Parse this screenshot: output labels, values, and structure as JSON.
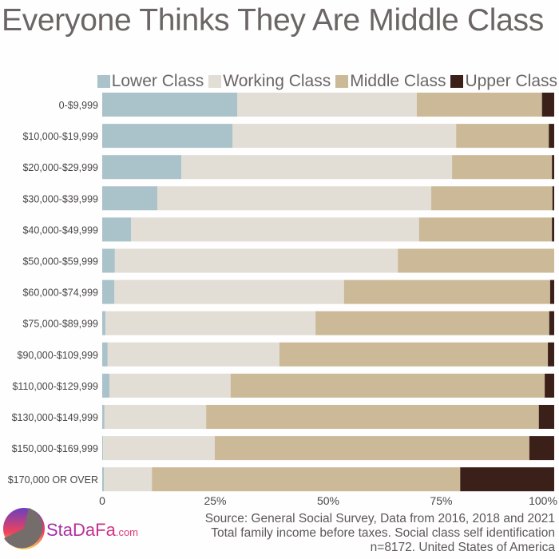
{
  "chart_data": {
    "type": "bar",
    "orientation": "horizontal",
    "stacked": true,
    "title": "Everyone Thinks They Are Middle Class",
    "categories": [
      "0-$9,999",
      "$10,000-$19,999",
      "$20,000-$29,999",
      "$30,000-$39,999",
      "$40,000-$49,999",
      "$50,000-$59,999",
      "$60,000-$74,999",
      "$75,000-$89,999",
      "$90,000-$109,999",
      "$110,000-$129,999",
      "$130,000-$149,999",
      "$150,000-$169,999",
      "$170,000 OR OVER"
    ],
    "series": [
      {
        "name": "Lower Class",
        "color": "#aac2c9",
        "values": [
          29.9,
          28.8,
          17.5,
          12.2,
          6.4,
          2.8,
          2.7,
          0.7,
          1.2,
          1.6,
          0.5,
          0.2,
          0.4
        ]
      },
      {
        "name": "Working Class",
        "color": "#e2ddd5",
        "values": [
          39.7,
          49.5,
          59.9,
          60.6,
          63.7,
          62.6,
          50.8,
          46.5,
          38.0,
          26.8,
          22.5,
          24.7,
          10.6
        ]
      },
      {
        "name": "Middle Class",
        "color": "#cbb998",
        "values": [
          27.7,
          20.5,
          22.1,
          26.8,
          29.4,
          34.6,
          45.6,
          51.7,
          59.4,
          69.5,
          73.6,
          69.6,
          68.2
        ]
      },
      {
        "name": "Upper Class",
        "color": "#3b2019",
        "values": [
          2.7,
          1.2,
          0.5,
          0.4,
          0.5,
          0.0,
          0.9,
          1.1,
          1.4,
          2.1,
          3.4,
          5.5,
          20.8
        ]
      }
    ],
    "xlim": [
      0,
      100
    ],
    "xticks": [
      0,
      25,
      50,
      75,
      100
    ],
    "xtick_labels": [
      "0",
      "25%",
      "50%",
      "75%",
      "100%"
    ],
    "legend_position": "top-right",
    "grid": false
  },
  "source": {
    "line1": "Source: General Social Survey, Data from 2016, 2018 and 2021",
    "line2": "Total family income before taxes. Social class self identification",
    "line3": "n=8172. United States of America"
  },
  "brand": {
    "name": "StaDaFa",
    "suffix": ".com"
  }
}
